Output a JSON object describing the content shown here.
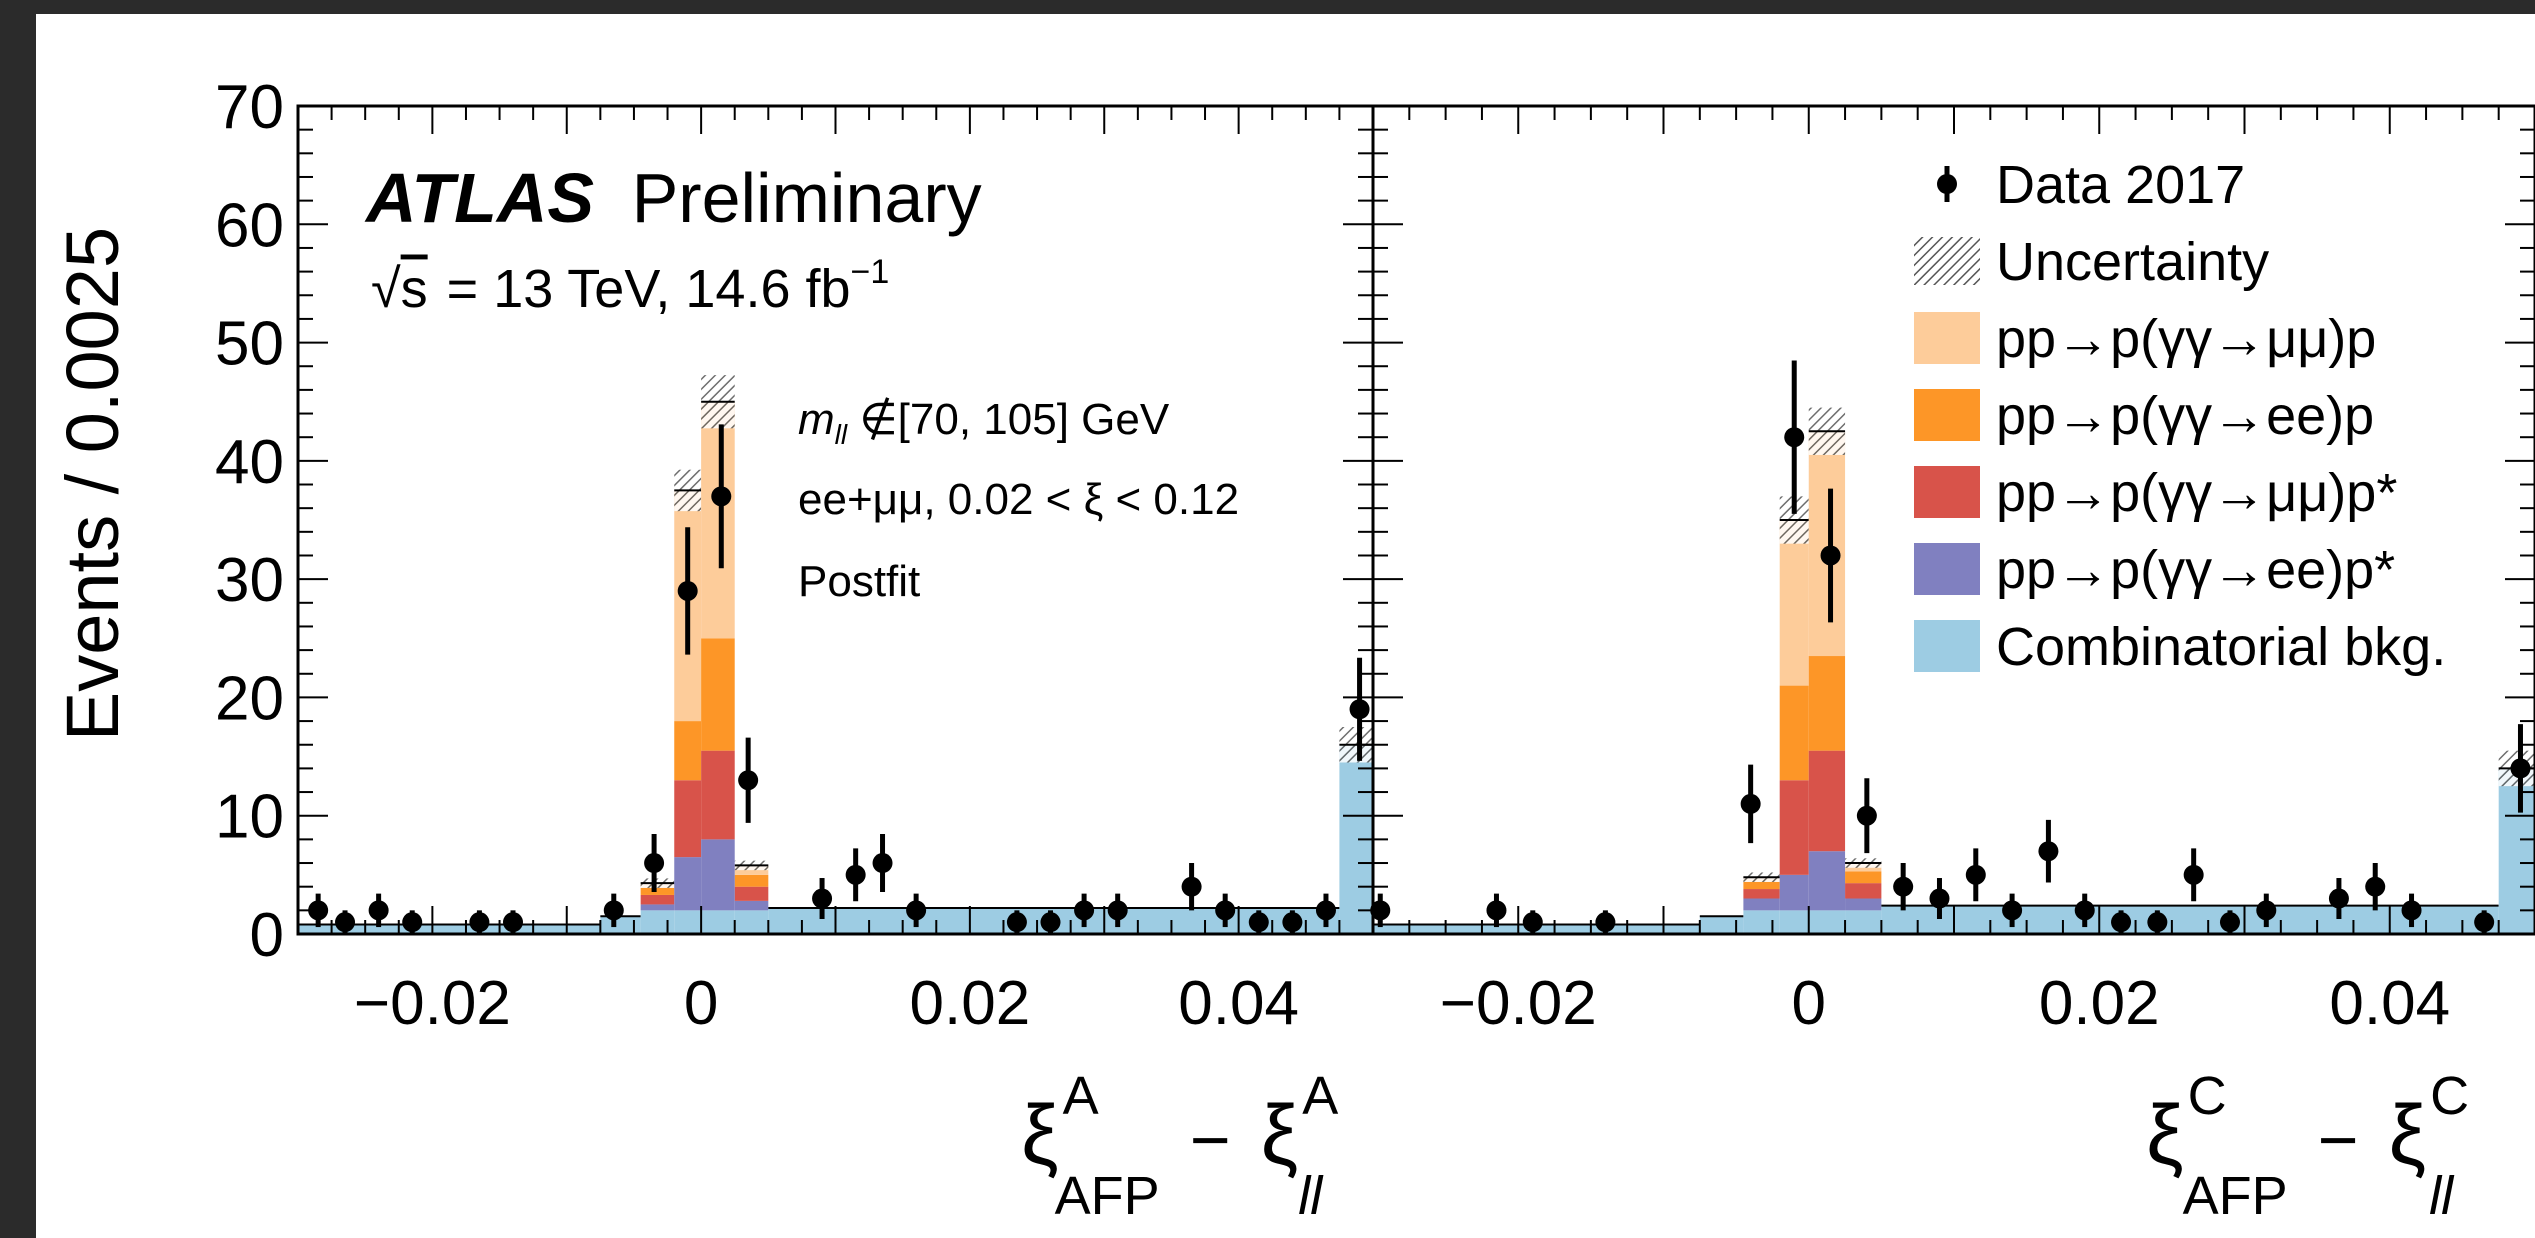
{
  "chart_data": {
    "type": "histogram",
    "ylabel": "Events / 0.0025",
    "ylim": [
      0,
      70
    ],
    "yticks": [
      "0",
      "10",
      "20",
      "30",
      "40",
      "50",
      "60",
      "70"
    ],
    "xticks_labels": [
      "−0.02",
      "0",
      "0.02",
      "0.04"
    ],
    "xticks_values": [
      -0.02,
      0,
      0.02,
      0.04
    ],
    "annotation": {
      "atlas": "ATLAS",
      "preliminary": "Preliminary",
      "energy_sqrt": "√",
      "energy_s": "s",
      "energy_rest": "= 13 TeV, 14.6 fb",
      "energy_sup": "−1",
      "mll_m": "m",
      "mll_sub": "ll",
      "mll_rest": " ∉[70, 105] GeV",
      "selection": "ee+μμ, 0.02 < ξ < 0.12",
      "fit": "Postfit"
    },
    "colors": {
      "pp_mumu_p": "#fdcc9a",
      "pp_ee_p": "#fd9627",
      "pp_mumu_pstar": "#d8534a",
      "pp_ee_pstar": "#8080c0",
      "combinatorial": "#9dcce3",
      "data": "#000000"
    },
    "legend": [
      {
        "key": "data",
        "label": "Data 2017",
        "style": "marker"
      },
      {
        "key": "unc",
        "label": "Uncertainty",
        "style": "hatch"
      },
      {
        "key": "pp_mumu_p",
        "label": "pp→p(γγ→μμ)p",
        "style": "fill"
      },
      {
        "key": "pp_ee_p",
        "label": "pp→p(γγ→ee)p",
        "style": "fill"
      },
      {
        "key": "pp_mumu_pstar",
        "label": "pp→p(γγ→μμ)p*",
        "style": "fill"
      },
      {
        "key": "pp_ee_pstar",
        "label": "pp→p(γγ→ee)p*",
        "style": "fill"
      },
      {
        "key": "combinatorial",
        "label": "Combinatorial bkg.",
        "style": "fill"
      }
    ],
    "panels": [
      {
        "id": "A",
        "xlim": [
          -0.03,
          0.05
        ],
        "xlabel": {
          "xi": "ξ",
          "sup1": "A",
          "sub1": "AFP",
          "minus": "−",
          "xi2": "ξ",
          "sup2": "A",
          "sub2": "ll"
        },
        "bins": [
          {
            "lo": -0.03,
            "hi": -0.0075,
            "comb": 0.8
          },
          {
            "lo": -0.0075,
            "hi": -0.0045,
            "comb": 1.5
          },
          {
            "lo": -0.0045,
            "hi": -0.002,
            "comb": 2.0,
            "pp_ee_pstar": 0.5,
            "pp_mumu_pstar": 0.8,
            "pp_ee_p": 0.6,
            "pp_mumu_p": 0.4,
            "unc": 0.8
          },
          {
            "lo": -0.002,
            "hi": 0.0025,
            "comb": 2.0,
            "pp_ee_pstar": 4.5,
            "pp_mumu_pstar": 6.5,
            "pp_ee_p": 5.0,
            "pp_mumu_p": 19.5,
            "unc": 3.5,
            "split": 0.0
          },
          {
            "lo": 0.0025,
            "hi": 0.005,
            "comb": 2.0,
            "pp_ee_pstar": 0.8,
            "pp_mumu_pstar": 1.2,
            "pp_ee_p": 1.0,
            "pp_mumu_p": 0.8,
            "unc": 0.8
          },
          {
            "lo": 0.005,
            "hi": 0.0475,
            "comb": 2.2
          },
          {
            "lo": 0.0475,
            "hi": 0.05,
            "comb": 16.0,
            "unc": 3.0
          }
        ],
        "stack_split": {
          "lo": -0.002,
          "mid": 0.0,
          "hi": 0.0025,
          "left": {
            "comb": 2.0,
            "pp_ee_pstar": 4.5,
            "pp_mumu_pstar": 6.5,
            "pp_ee_p": 5.0,
            "pp_mumu_p": 19.5,
            "unc": 3.5
          },
          "right": {
            "comb": 2.0,
            "pp_ee_pstar": 6.0,
            "pp_mumu_pstar": 7.5,
            "pp_ee_p": 9.5,
            "pp_mumu_p": 20.0,
            "unc": 4.5
          }
        },
        "data": [
          {
            "x": -0.0285,
            "y": 2
          },
          {
            "x": -0.0265,
            "y": 1
          },
          {
            "x": -0.024,
            "y": 2
          },
          {
            "x": -0.0215,
            "y": 1
          },
          {
            "x": -0.0165,
            "y": 1
          },
          {
            "x": -0.014,
            "y": 1
          },
          {
            "x": -0.0065,
            "y": 2
          },
          {
            "x": -0.0035,
            "y": 6
          },
          {
            "x": -0.001,
            "y": 29
          },
          {
            "x": 0.0015,
            "y": 37
          },
          {
            "x": 0.0035,
            "y": 13
          },
          {
            "x": 0.009,
            "y": 3
          },
          {
            "x": 0.0115,
            "y": 5
          },
          {
            "x": 0.0135,
            "y": 6
          },
          {
            "x": 0.016,
            "y": 2
          },
          {
            "x": 0.0235,
            "y": 1
          },
          {
            "x": 0.026,
            "y": 1
          },
          {
            "x": 0.0285,
            "y": 2
          },
          {
            "x": 0.031,
            "y": 2
          },
          {
            "x": 0.0365,
            "y": 4
          },
          {
            "x": 0.039,
            "y": 2
          },
          {
            "x": 0.0415,
            "y": 1
          },
          {
            "x": 0.044,
            "y": 1
          },
          {
            "x": 0.0465,
            "y": 2
          },
          {
            "x": 0.049,
            "y": 19
          }
        ]
      },
      {
        "id": "C",
        "xlim": [
          -0.03,
          0.05
        ],
        "xlabel": {
          "xi": "ξ",
          "sup1": "C",
          "sub1": "AFP",
          "minus": "−",
          "xi2": "ξ",
          "sup2": "C",
          "sub2": "ll"
        },
        "bins": [
          {
            "lo": -0.03,
            "hi": -0.0075,
            "comb": 0.8
          },
          {
            "lo": -0.0075,
            "hi": -0.0045,
            "comb": 1.5
          },
          {
            "lo": -0.0045,
            "hi": -0.002,
            "comb": 2.0,
            "pp_ee_pstar": 1.0,
            "pp_mumu_pstar": 0.8,
            "pp_ee_p": 0.6,
            "pp_mumu_p": 0.4,
            "unc": 0.8
          },
          {
            "lo": 0.0025,
            "hi": 0.005,
            "comb": 2.0,
            "pp_ee_pstar": 1.0,
            "pp_mumu_pstar": 1.3,
            "pp_ee_p": 1.0,
            "pp_mumu_p": 0.7,
            "unc": 0.8
          },
          {
            "lo": 0.005,
            "hi": 0.0475,
            "comb": 2.4
          },
          {
            "lo": 0.0475,
            "hi": 0.05,
            "comb": 14.0,
            "unc": 3.0
          }
        ],
        "stack_split": {
          "lo": -0.002,
          "mid": 0.0,
          "hi": 0.0025,
          "left": {
            "comb": 2.0,
            "pp_ee_pstar": 3.0,
            "pp_mumu_pstar": 8.0,
            "pp_ee_p": 8.0,
            "pp_mumu_p": 14.0,
            "unc": 4.0
          },
          "right": {
            "comb": 2.0,
            "pp_ee_pstar": 5.0,
            "pp_mumu_pstar": 8.5,
            "pp_ee_p": 8.0,
            "pp_mumu_p": 19.0,
            "unc": 4.0
          }
        },
        "data": [
          {
            "x": -0.0295,
            "y": 2
          },
          {
            "x": -0.0215,
            "y": 2
          },
          {
            "x": -0.019,
            "y": 1
          },
          {
            "x": -0.014,
            "y": 1
          },
          {
            "x": -0.004,
            "y": 11
          },
          {
            "x": -0.001,
            "y": 42
          },
          {
            "x": 0.0015,
            "y": 32
          },
          {
            "x": 0.004,
            "y": 10
          },
          {
            "x": 0.0065,
            "y": 4
          },
          {
            "x": 0.009,
            "y": 3
          },
          {
            "x": 0.0115,
            "y": 5
          },
          {
            "x": 0.014,
            "y": 2
          },
          {
            "x": 0.0165,
            "y": 7
          },
          {
            "x": 0.019,
            "y": 2
          },
          {
            "x": 0.0215,
            "y": 1
          },
          {
            "x": 0.024,
            "y": 1
          },
          {
            "x": 0.0265,
            "y": 5
          },
          {
            "x": 0.029,
            "y": 1
          },
          {
            "x": 0.0315,
            "y": 2
          },
          {
            "x": 0.0365,
            "y": 3
          },
          {
            "x": 0.039,
            "y": 4
          },
          {
            "x": 0.0415,
            "y": 2
          },
          {
            "x": 0.0465,
            "y": 1
          },
          {
            "x": 0.049,
            "y": 14
          }
        ]
      }
    ]
  }
}
